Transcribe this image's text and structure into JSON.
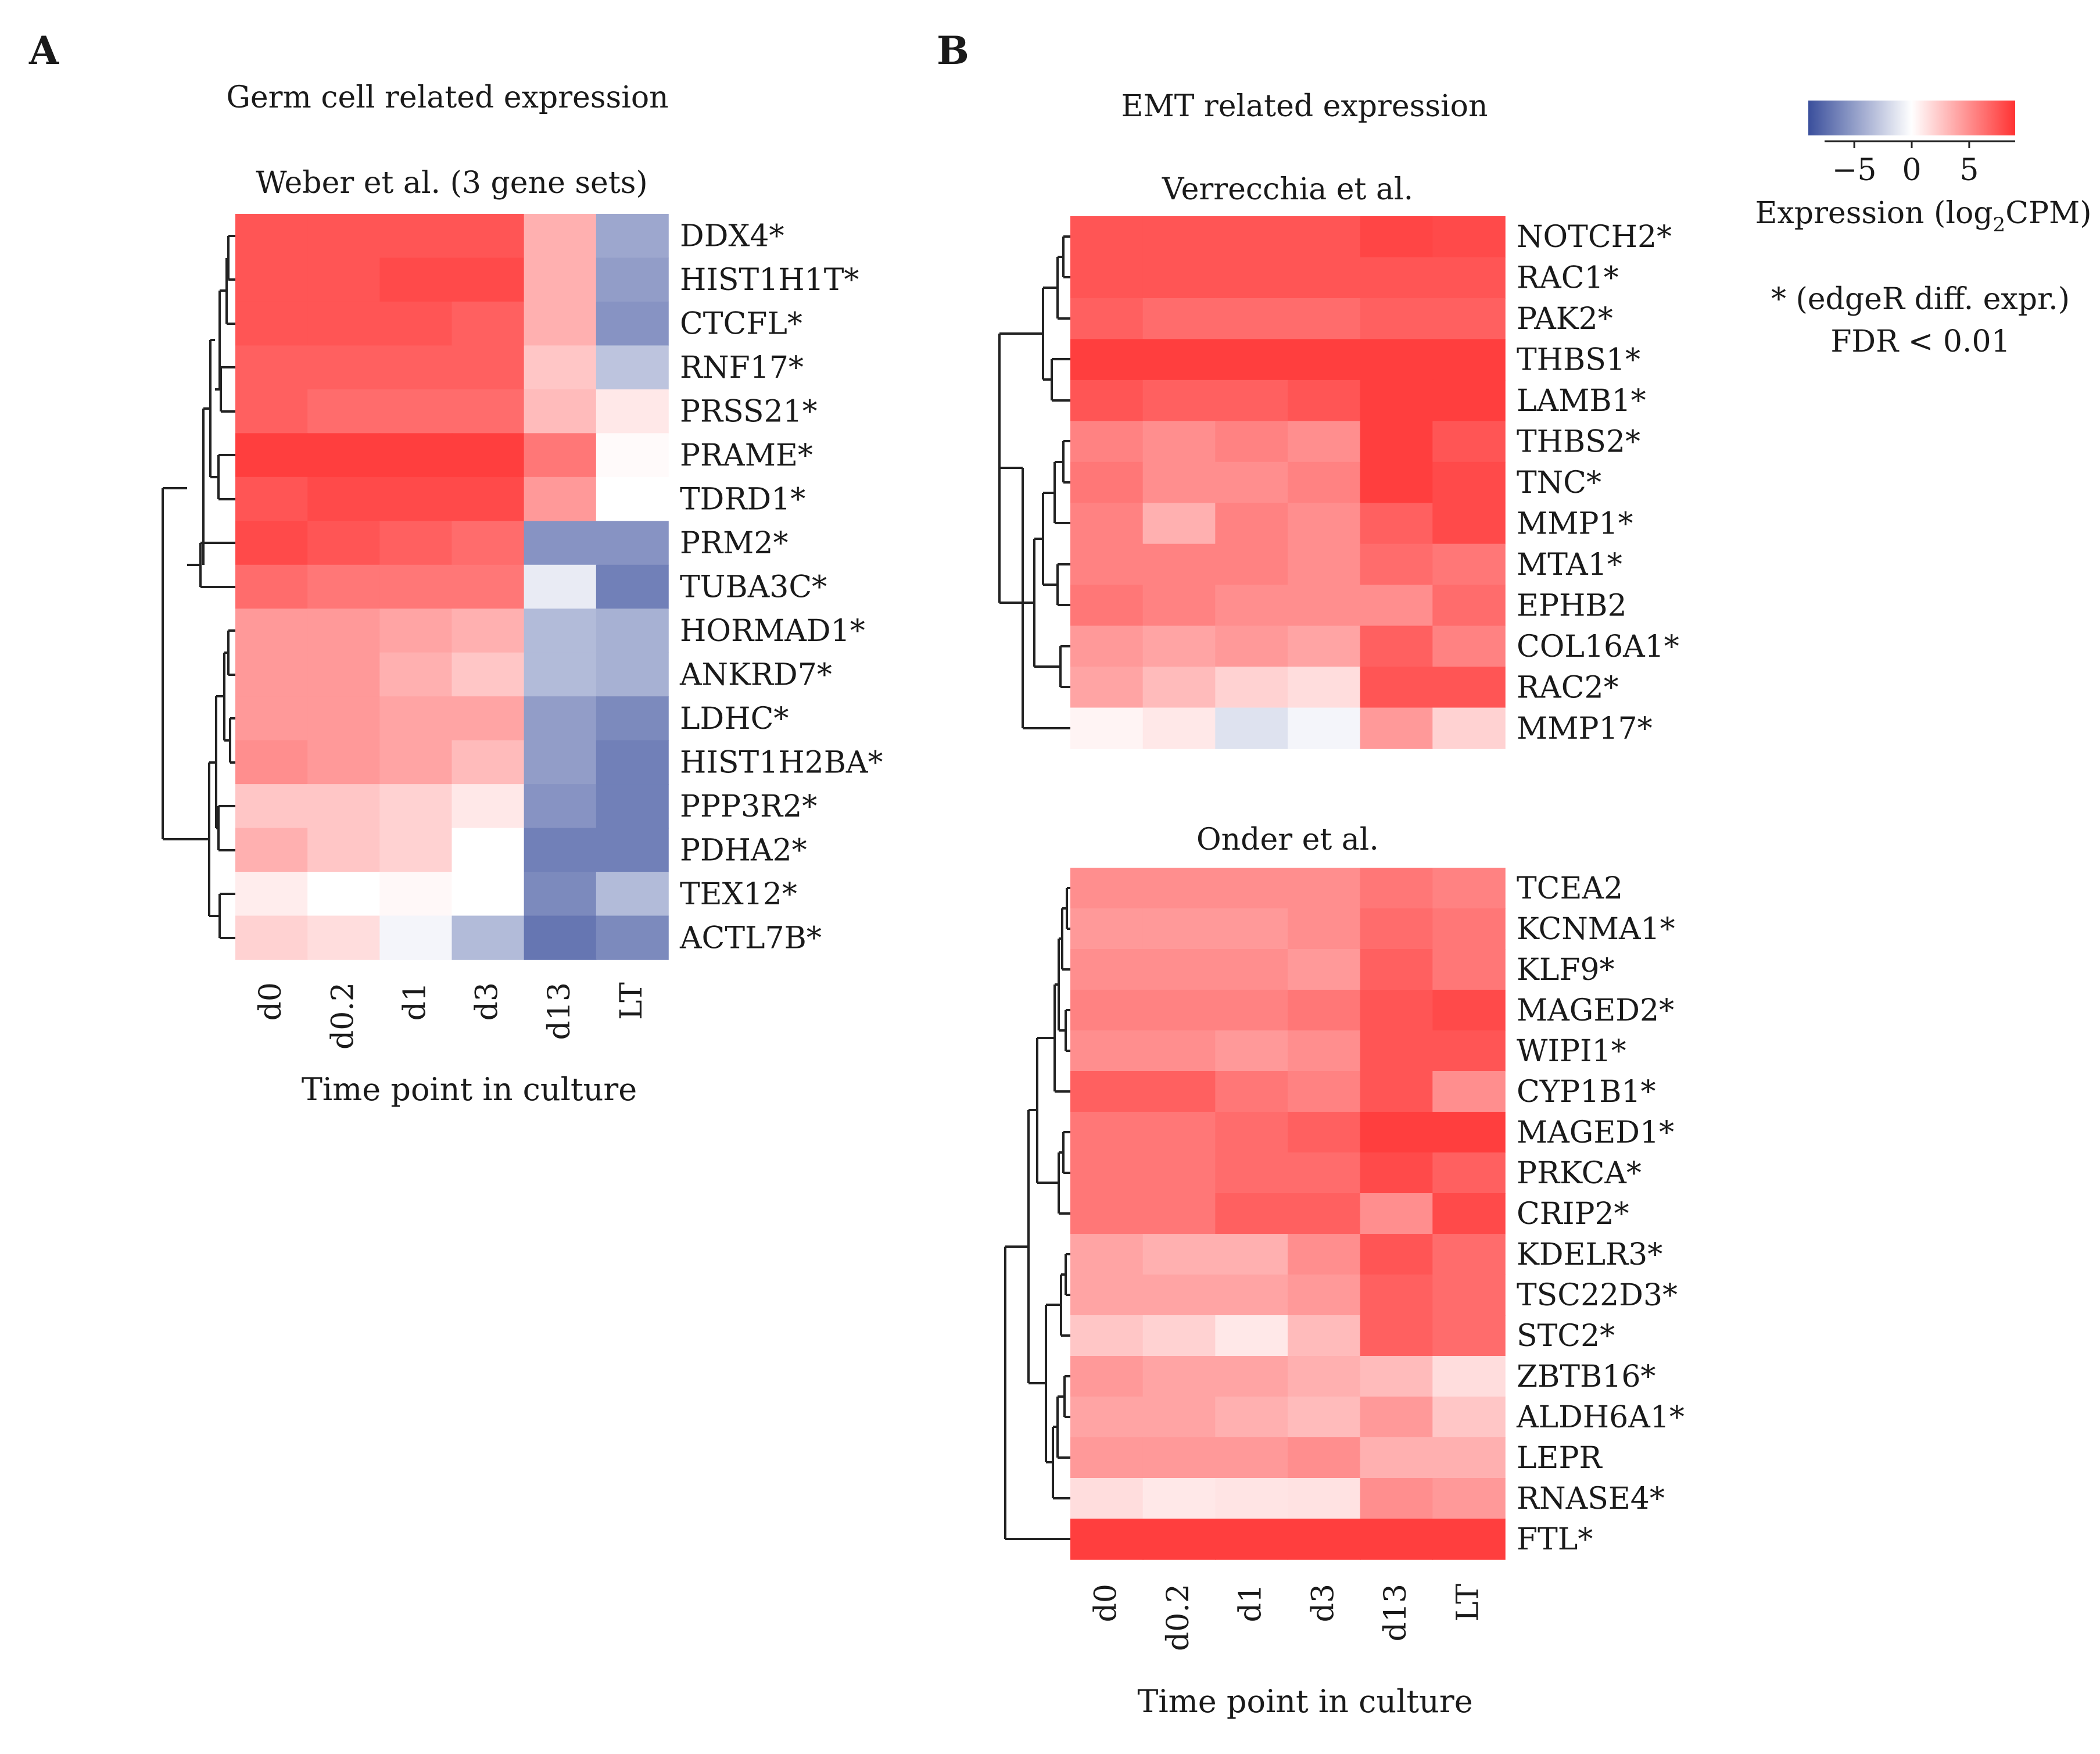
{
  "panels": [
    {
      "letter": "A",
      "title": "Germ cell related expression"
    },
    {
      "letter": "B",
      "title": "EMT related expression"
    }
  ],
  "legend": {
    "title_prefix": "Expression (log",
    "title_sub": "2",
    "title_suffix": "CPM)",
    "ticks": [
      "−5",
      "0",
      "5"
    ],
    "tick_values": [
      -5,
      0,
      5
    ],
    "range": [
      -9,
      9
    ],
    "colors": {
      "low": "#3a4f9c",
      "mid": "#ffffff",
      "high": "#ff3333"
    },
    "note_line1": "* (edgeR diff. expr.)",
    "note_line2": "FDR < 0.01"
  },
  "chart_data": [
    {
      "type": "heatmap",
      "panel": "A",
      "title": "Weber et al. (3 gene sets)",
      "xlabel": "Time point in culture",
      "columns": [
        "d0",
        "d0.2",
        "d1",
        "d3",
        "d13",
        "LT"
      ],
      "rows": [
        "DDX4*",
        "HIST1H1T*",
        "CTCFL*",
        "RNF17*",
        "PRSS21*",
        "PRAME*",
        "TDRD1*",
        "PRM2*",
        "TUBA3C*",
        "HORMAD1*",
        "ANKRD7*",
        "LDHC*",
        "HIST1H2BA*",
        "PPP3R2*",
        "PDHA2*",
        "TEX12*",
        "ACTL7B*"
      ],
      "values": [
        [
          7.5,
          7.5,
          7.5,
          7.5,
          3.5,
          -4.5
        ],
        [
          7.5,
          7.5,
          8,
          8,
          3.5,
          -5
        ],
        [
          7.5,
          7.5,
          7.5,
          7,
          3.5,
          -5.5
        ],
        [
          7,
          7,
          7,
          7,
          2.5,
          -3
        ],
        [
          7,
          6.5,
          6.5,
          6.5,
          3,
          1
        ],
        [
          8.5,
          8.5,
          8.5,
          8.5,
          6,
          0.2
        ],
        [
          7.5,
          8,
          8,
          8,
          4.5,
          0
        ],
        [
          8,
          7.5,
          7,
          6.5,
          -5.5,
          -5.5
        ],
        [
          6.5,
          6,
          6,
          6,
          -1,
          -6.5
        ],
        [
          4.5,
          4.5,
          4,
          3.5,
          -3.5,
          -4
        ],
        [
          4.5,
          4.5,
          3.5,
          2.5,
          -3.5,
          -4
        ],
        [
          4.5,
          4.5,
          4,
          4,
          -5,
          -6
        ],
        [
          5,
          4.5,
          4,
          3,
          -5,
          -6.5
        ],
        [
          2.5,
          2.5,
          2,
          1,
          -5.5,
          -6.5
        ],
        [
          3.5,
          2.5,
          2,
          0,
          -6.5,
          -6.5
        ],
        [
          0.8,
          0,
          0.3,
          0,
          -6,
          -3.5
        ],
        [
          2,
          1.5,
          -0.5,
          -3.5,
          -7,
          -6
        ]
      ],
      "dendrogram_rows": [
        "DDX4*",
        "HIST1H1T*",
        "CTCFL*",
        "RNF17*",
        "PRSS21*",
        "PRAME*",
        "TDRD1*",
        "PRM2*",
        "TUBA3C*",
        "HORMAD1*",
        "ANKRD7*",
        "LDHC*",
        "HIST1H2BA*",
        "PPP3R2*",
        "PDHA2*",
        "TEX12*",
        "ACTL7B*"
      ]
    },
    {
      "type": "heatmap",
      "panel": "B",
      "title": "Verrecchia et al.",
      "xlabel": "",
      "columns": [
        "d0",
        "d0.2",
        "d1",
        "d3",
        "d13",
        "LT"
      ],
      "rows": [
        "NOTCH2*",
        "RAC1*",
        "PAK2*",
        "THBS1*",
        "LAMB1*",
        "THBS2*",
        "TNC*",
        "MMP1*",
        "MTA1*",
        "EPHB2",
        "COL16A1*",
        "RAC2*",
        "MMP17*"
      ],
      "values": [
        [
          7.5,
          7.5,
          7.5,
          7.5,
          8.2,
          8
        ],
        [
          7.5,
          7.5,
          7.5,
          7.5,
          7.5,
          7.5
        ],
        [
          7,
          6.5,
          6.5,
          6.5,
          7,
          7
        ],
        [
          8.5,
          8.5,
          8.5,
          8.5,
          8.5,
          8.5
        ],
        [
          7.5,
          7,
          7,
          7.5,
          8.5,
          8.5
        ],
        [
          5.5,
          5,
          5.5,
          5,
          8.5,
          7.5
        ],
        [
          6,
          5,
          5,
          5.5,
          8.5,
          8
        ],
        [
          5.5,
          3.5,
          5.5,
          5,
          7,
          8
        ],
        [
          5.5,
          5.5,
          5.5,
          5,
          6.5,
          6
        ],
        [
          6,
          5.5,
          5,
          5,
          5,
          6.5
        ],
        [
          4.5,
          4,
          4.5,
          4,
          7,
          5.5
        ],
        [
          4,
          3,
          2,
          1.5,
          7.5,
          7.5
        ],
        [
          0.5,
          1,
          -1.5,
          -0.5,
          4.5,
          2
        ]
      ]
    },
    {
      "type": "heatmap",
      "panel": "B",
      "title": "Onder et al.",
      "xlabel": "Time point in culture",
      "columns": [
        "d0",
        "d0.2",
        "d1",
        "d3",
        "d13",
        "LT"
      ],
      "rows": [
        "TCEA2",
        "KCNMA1*",
        "KLF9*",
        "MAGED2*",
        "WIPI1*",
        "CYP1B1*",
        "MAGED1*",
        "PRKCA*",
        "CRIP2*",
        "KDELR3*",
        "TSC22D3*",
        "STC2*",
        "ZBTB16*",
        "ALDH6A1*",
        "LEPR",
        "RNASE4*",
        "FTL*"
      ],
      "values": [
        [
          5,
          5,
          5,
          5,
          6,
          5.5
        ],
        [
          4.5,
          4.5,
          4.5,
          5,
          6.5,
          6
        ],
        [
          5,
          5,
          5,
          4.5,
          7,
          6
        ],
        [
          5.5,
          5.5,
          5.5,
          6,
          7.5,
          8
        ],
        [
          5,
          5,
          4.5,
          5,
          7.5,
          7.5
        ],
        [
          7,
          7,
          6,
          5.5,
          7.5,
          5
        ],
        [
          6,
          6,
          6.5,
          7,
          8.5,
          8.5
        ],
        [
          6,
          6,
          6.5,
          6.5,
          8,
          7
        ],
        [
          6,
          6,
          7,
          7,
          5,
          8
        ],
        [
          4,
          3.5,
          3.5,
          5,
          7.5,
          6.5
        ],
        [
          4,
          4,
          4,
          4.5,
          7,
          6.5
        ],
        [
          2.5,
          2,
          1,
          3,
          7,
          6.5
        ],
        [
          4.5,
          4,
          4,
          3.5,
          3,
          1.5
        ],
        [
          4,
          4,
          3.5,
          3,
          4.5,
          2.5
        ],
        [
          4.5,
          4.5,
          4.5,
          5,
          3.5,
          3.5
        ],
        [
          1.5,
          1,
          1.2,
          1.3,
          5,
          4.5
        ],
        [
          8.5,
          8.5,
          8.5,
          8.5,
          8.5,
          8.5
        ]
      ]
    }
  ]
}
